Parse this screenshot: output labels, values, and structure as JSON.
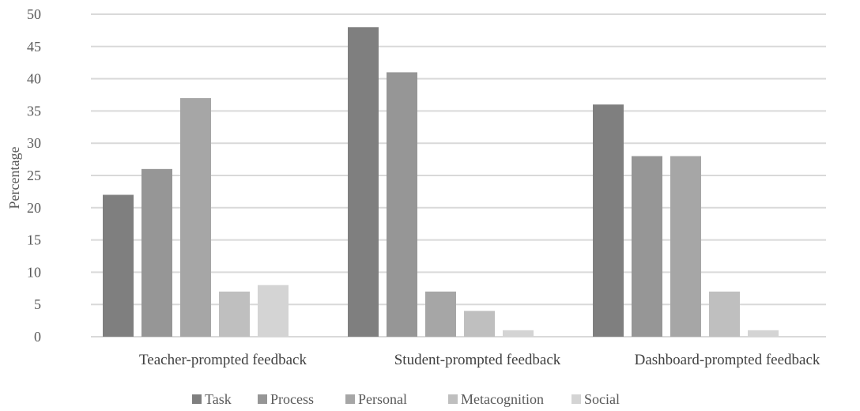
{
  "chart_data": {
    "type": "bar",
    "categories": [
      "Teacher-prompted feedback",
      "Student-prompted feedback",
      "Dashboard-prompted feedback"
    ],
    "series": [
      {
        "name": "Task",
        "values": [
          22,
          48,
          36
        ],
        "color": "#7f7f7f"
      },
      {
        "name": "Process",
        "values": [
          26,
          41,
          28
        ],
        "color": "#969696"
      },
      {
        "name": "Personal",
        "values": [
          37,
          7,
          28
        ],
        "color": "#a6a6a6"
      },
      {
        "name": "Metacognition",
        "values": [
          7,
          4,
          7
        ],
        "color": "#bfbfbf"
      },
      {
        "name": "Social",
        "values": [
          8,
          1,
          1
        ],
        "color": "#d4d4d4"
      }
    ],
    "title": "",
    "xlabel": "",
    "ylabel": "Percentage",
    "ylim": [
      0,
      50
    ],
    "yticks": [
      0,
      5,
      10,
      15,
      20,
      25,
      30,
      35,
      40,
      45,
      50
    ],
    "grid": true,
    "legend_position": "bottom"
  }
}
